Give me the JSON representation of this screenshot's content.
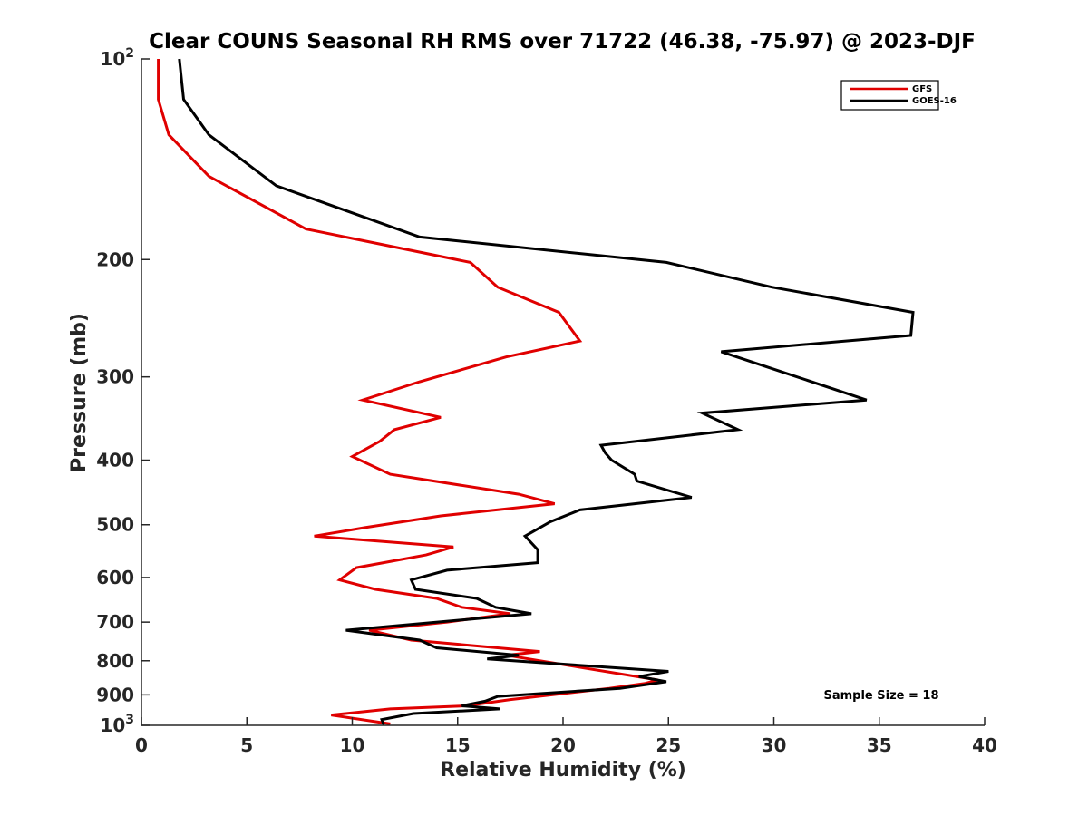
{
  "chart_data": {
    "type": "line",
    "title": "Clear COUNS Seasonal RH RMS over 71722 (46.38, -75.97) @ 2023-DJF",
    "xlabel": "Relative Humidity (%)",
    "ylabel": "Pressure (mb)",
    "xlim": [
      0,
      40
    ],
    "ylim": [
      100,
      1000
    ],
    "yscale": "log",
    "y_reversed": true,
    "grid": false,
    "legend_position": "top-right",
    "x_ticks": [
      "0",
      "5",
      "10",
      "15",
      "20",
      "25",
      "30",
      "35",
      "40"
    ],
    "x_tick_values": [
      0,
      5,
      10,
      15,
      20,
      25,
      30,
      35,
      40
    ],
    "y_ticks": [
      {
        "value": 100,
        "base": "10",
        "exp": "2"
      },
      {
        "value": 200,
        "label": "200"
      },
      {
        "value": 300,
        "label": "300"
      },
      {
        "value": 400,
        "label": "400"
      },
      {
        "value": 500,
        "label": "500"
      },
      {
        "value": 600,
        "label": "600"
      },
      {
        "value": 700,
        "label": "700"
      },
      {
        "value": 800,
        "label": "800"
      },
      {
        "value": 900,
        "label": "900"
      },
      {
        "value": 1000,
        "base": "10",
        "exp": "3"
      }
    ],
    "annotation": "Sample Size = 18",
    "series": [
      {
        "name": "GFS",
        "color": "#e00000",
        "points": [
          [
            0.8,
            100
          ],
          [
            0.8,
            115
          ],
          [
            1.3,
            130
          ],
          [
            3.2,
            150
          ],
          [
            7.8,
            180
          ],
          [
            15.6,
            202
          ],
          [
            16.9,
            220
          ],
          [
            19.8,
            240
          ],
          [
            20.8,
            265
          ],
          [
            17.3,
            280
          ],
          [
            13.2,
            305
          ],
          [
            10.5,
            325
          ],
          [
            14.2,
            345
          ],
          [
            12.0,
            360
          ],
          [
            11.3,
            375
          ],
          [
            10.0,
            395
          ],
          [
            11.8,
            420
          ],
          [
            17.9,
            450
          ],
          [
            19.6,
            465
          ],
          [
            14.2,
            485
          ],
          [
            10.6,
            505
          ],
          [
            8.2,
            520
          ],
          [
            14.8,
            540
          ],
          [
            13.5,
            555
          ],
          [
            10.2,
            580
          ],
          [
            9.4,
            605
          ],
          [
            11.1,
            625
          ],
          [
            14.0,
            645
          ],
          [
            15.2,
            665
          ],
          [
            17.5,
            680
          ],
          [
            14.5,
            700
          ],
          [
            10.8,
            720
          ],
          [
            12.8,
            745
          ],
          [
            18.9,
            775
          ],
          [
            17.3,
            785
          ],
          [
            24.5,
            855
          ],
          [
            23.9,
            865
          ],
          [
            22.2,
            880
          ],
          [
            17.5,
            915
          ],
          [
            15.4,
            935
          ],
          [
            11.8,
            945
          ],
          [
            9.0,
            965
          ],
          [
            11.8,
            995
          ]
        ]
      },
      {
        "name": "GOES-16",
        "color": "#000000",
        "points": [
          [
            1.8,
            100
          ],
          [
            2.0,
            115
          ],
          [
            3.2,
            130
          ],
          [
            6.4,
            155
          ],
          [
            13.2,
            185
          ],
          [
            24.9,
            202
          ],
          [
            29.9,
            220
          ],
          [
            36.6,
            240
          ],
          [
            36.5,
            260
          ],
          [
            27.5,
            275
          ],
          [
            30.4,
            295
          ],
          [
            34.4,
            325
          ],
          [
            26.6,
            340
          ],
          [
            28.3,
            360
          ],
          [
            21.8,
            380
          ],
          [
            22.0,
            390
          ],
          [
            22.3,
            400
          ],
          [
            23.4,
            420
          ],
          [
            23.5,
            430
          ],
          [
            26.1,
            455
          ],
          [
            20.8,
            475
          ],
          [
            19.4,
            495
          ],
          [
            18.2,
            520
          ],
          [
            18.8,
            545
          ],
          [
            18.8,
            570
          ],
          [
            14.5,
            585
          ],
          [
            12.8,
            605
          ],
          [
            13.0,
            625
          ],
          [
            15.9,
            645
          ],
          [
            16.8,
            665
          ],
          [
            18.5,
            680
          ],
          [
            9.7,
            720
          ],
          [
            13.2,
            745
          ],
          [
            14.0,
            765
          ],
          [
            17.9,
            785
          ],
          [
            16.4,
            795
          ],
          [
            25.0,
            830
          ],
          [
            23.6,
            845
          ],
          [
            24.9,
            860
          ],
          [
            22.7,
            880
          ],
          [
            16.9,
            905
          ],
          [
            16.3,
            920
          ],
          [
            15.2,
            935
          ],
          [
            17.0,
            945
          ],
          [
            12.9,
            960
          ],
          [
            11.4,
            980
          ],
          [
            11.5,
            998
          ]
        ]
      }
    ]
  }
}
